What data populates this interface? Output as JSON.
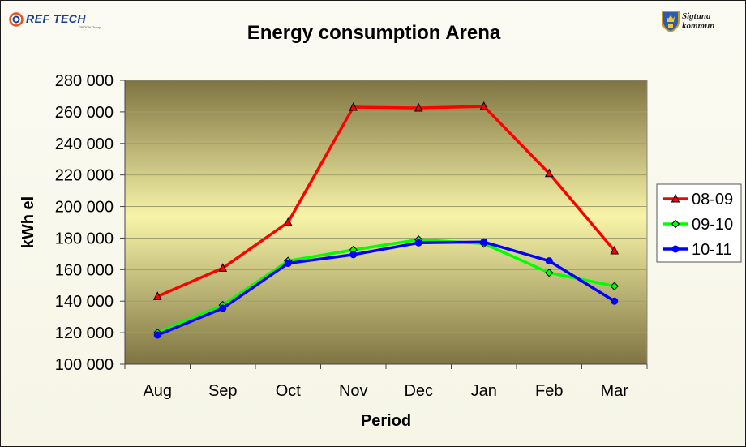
{
  "logos": {
    "left_name": "REF TECH",
    "left_sub": "GROON Group",
    "right_line1": "Sigtuna",
    "right_line2": "kommun",
    "left_icon": "reftech-swirl-icon",
    "right_icon": "sigtuna-crest-icon"
  },
  "colors": {
    "plot_top": "#7f7442",
    "plot_mid": "#f7f4a8",
    "plot_bottom": "#7f7442",
    "series_08_09": "#ff0000",
    "series_09_10": "#00ff00",
    "series_10_11": "#0000ff"
  },
  "chart_data": {
    "type": "line",
    "title": "Energy consumption Arena",
    "xlabel": "Period",
    "ylabel": "kWh el",
    "categories": [
      "Aug",
      "Sep",
      "Oct",
      "Nov",
      "Dec",
      "Jan",
      "Feb",
      "Mar"
    ],
    "ylim": [
      100000,
      280000
    ],
    "ytick_labels": [
      "100 000",
      "120 000",
      "140 000",
      "160 000",
      "180 000",
      "200 000",
      "220 000",
      "240 000",
      "260 000",
      "280 000"
    ],
    "grid": true,
    "legend_position": "right",
    "series": [
      {
        "name": "08-09",
        "marker": "triangle",
        "values": [
          143000,
          161000,
          190000,
          263000,
          262500,
          263500,
          221000,
          172000
        ]
      },
      {
        "name": "09-10",
        "marker": "diamond",
        "values": [
          120000,
          137500,
          165500,
          172500,
          179000,
          176500,
          158000,
          149500
        ]
      },
      {
        "name": "10-11",
        "marker": "circle",
        "values": [
          118500,
          135500,
          164000,
          169500,
          177000,
          177500,
          165500,
          140000
        ]
      }
    ]
  }
}
